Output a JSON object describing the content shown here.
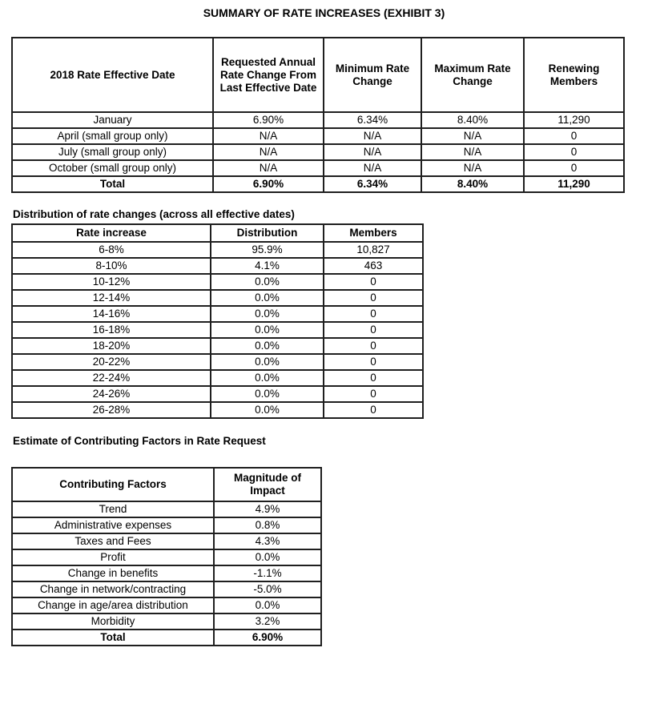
{
  "title": "SUMMARY OF RATE INCREASES (EXHIBIT 3)",
  "rate_table": {
    "headers": [
      "2018 Rate Effective Date",
      "Requested Annual\nRate Change From\nLast Effective Date",
      "Minimum Rate\nChange",
      "Maximum Rate\nChange",
      "Renewing\nMembers"
    ],
    "rows": [
      [
        "January",
        "6.90%",
        "6.34%",
        "8.40%",
        "11,290"
      ],
      [
        "April (small group only)",
        "N/A",
        "N/A",
        "N/A",
        "0"
      ],
      [
        "July (small group only)",
        "N/A",
        "N/A",
        "N/A",
        "0"
      ],
      [
        "October (small group only)",
        "N/A",
        "N/A",
        "N/A",
        "0"
      ]
    ],
    "total": [
      "Total",
      "6.90%",
      "6.34%",
      "8.40%",
      "11,290"
    ]
  },
  "distribution": {
    "heading": "Distribution of rate changes (across all effective dates)",
    "headers": [
      "Rate increase",
      "Distribution",
      "Members"
    ],
    "rows": [
      [
        "6-8%",
        "95.9%",
        "10,827"
      ],
      [
        "8-10%",
        "4.1%",
        "463"
      ],
      [
        "10-12%",
        "0.0%",
        "0"
      ],
      [
        "12-14%",
        "0.0%",
        "0"
      ],
      [
        "14-16%",
        "0.0%",
        "0"
      ],
      [
        "16-18%",
        "0.0%",
        "0"
      ],
      [
        "18-20%",
        "0.0%",
        "0"
      ],
      [
        "20-22%",
        "0.0%",
        "0"
      ],
      [
        "22-24%",
        "0.0%",
        "0"
      ],
      [
        "24-26%",
        "0.0%",
        "0"
      ],
      [
        "26-28%",
        "0.0%",
        "0"
      ]
    ]
  },
  "factors": {
    "heading": "Estimate of Contributing Factors in Rate Request",
    "headers": [
      "Contributing Factors",
      "Magnitude of\nImpact"
    ],
    "rows": [
      [
        "Trend",
        "4.9%"
      ],
      [
        "Administrative expenses",
        "0.8%"
      ],
      [
        "Taxes and Fees",
        "4.3%"
      ],
      [
        "Profit",
        "0.0%"
      ],
      [
        "Change in benefits",
        "-1.1%"
      ],
      [
        "Change in network/contracting",
        "-5.0%"
      ],
      [
        "Change in age/area distribution",
        "0.0%"
      ],
      [
        "Morbidity",
        "3.2%"
      ]
    ],
    "total": [
      "Total",
      "6.90%"
    ]
  }
}
